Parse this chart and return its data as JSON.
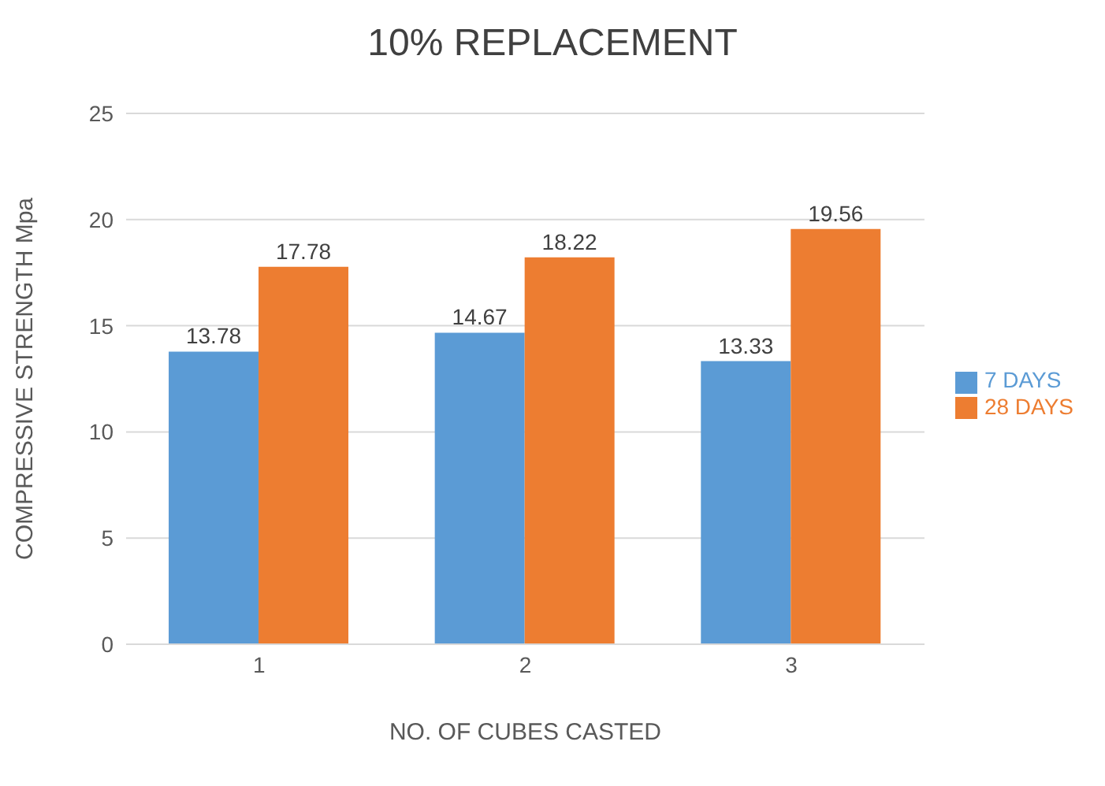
{
  "chart_data": {
    "type": "bar",
    "title": "10% REPLACEMENT",
    "xlabel": "NO. OF CUBES CASTED",
    "ylabel": "COMPRESSIVE STRENGTH Mpa",
    "categories": [
      "1",
      "2",
      "3"
    ],
    "series": [
      {
        "name": "7 DAYS",
        "color": "#5b9bd5",
        "values": [
          13.78,
          14.67,
          13.33
        ]
      },
      {
        "name": "28 DAYS",
        "color": "#ed7d31",
        "values": [
          17.78,
          18.22,
          19.56
        ]
      }
    ],
    "ylim": [
      0,
      25
    ],
    "yticks": [
      0,
      5,
      10,
      15,
      20,
      25
    ],
    "grid": "y",
    "legend": "right",
    "data_labels": true
  }
}
